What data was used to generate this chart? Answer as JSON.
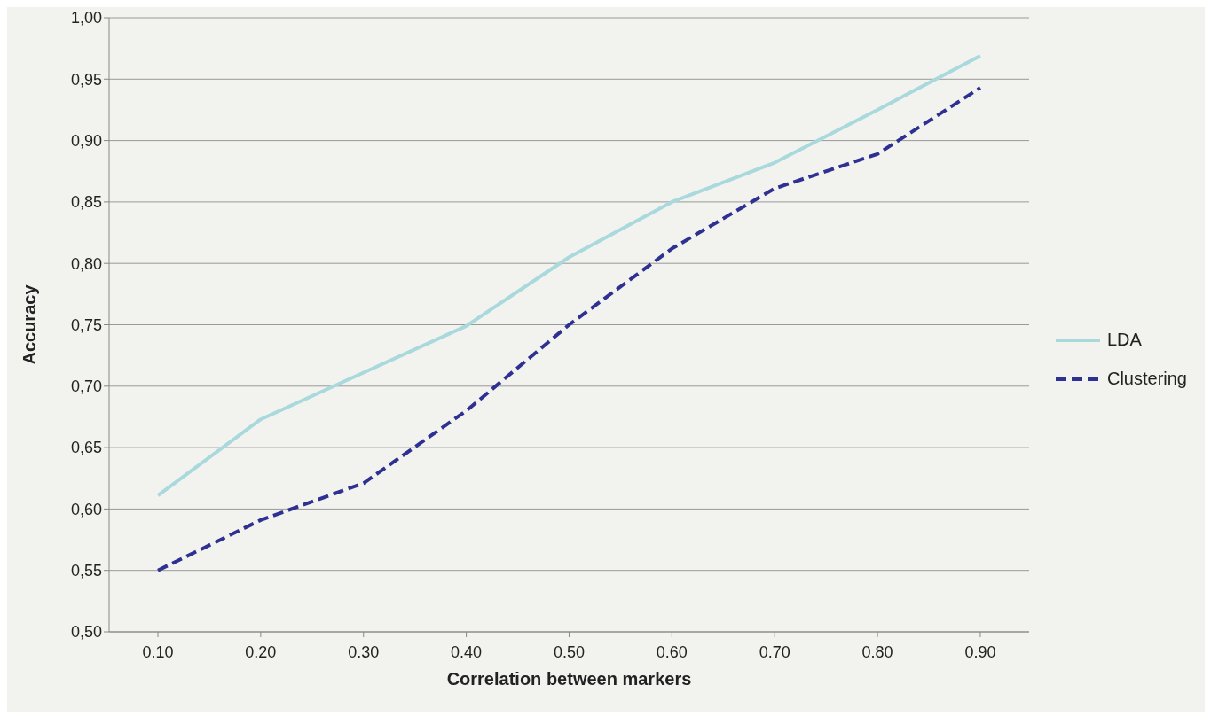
{
  "chart_data": {
    "type": "line",
    "xlabel": "Correlation between markers",
    "ylabel": "Accuracy",
    "categories": [
      "0.10",
      "0.20",
      "0.30",
      "0.40",
      "0.50",
      "0.60",
      "0.70",
      "0.80",
      "0.90"
    ],
    "series": [
      {
        "name": "LDA",
        "color": "#a9d9dd",
        "line_style": "solid",
        "values": [
          0.611,
          0.673,
          0.711,
          0.749,
          0.805,
          0.85,
          0.882,
          0.925,
          0.969
        ]
      },
      {
        "name": "Clustering",
        "color": "#2e3192",
        "line_style": "dashed",
        "values": [
          0.55,
          0.591,
          0.621,
          0.68,
          0.75,
          0.812,
          0.861,
          0.889,
          0.943
        ]
      }
    ],
    "ylim": [
      0.5,
      1.0
    ],
    "yticks": [
      {
        "value": 0.5,
        "label": "0,50"
      },
      {
        "value": 0.55,
        "label": "0,55"
      },
      {
        "value": 0.6,
        "label": "0,60"
      },
      {
        "value": 0.65,
        "label": "0,65"
      },
      {
        "value": 0.7,
        "label": "0,70"
      },
      {
        "value": 0.75,
        "label": "0,75"
      },
      {
        "value": 0.8,
        "label": "0,80"
      },
      {
        "value": 0.85,
        "label": "0,85"
      },
      {
        "value": 0.9,
        "label": "0,90"
      },
      {
        "value": 0.95,
        "label": "0,95"
      },
      {
        "value": 1.0,
        "label": "1,00"
      }
    ],
    "grid": "y",
    "legend": "right",
    "marker": "none"
  }
}
